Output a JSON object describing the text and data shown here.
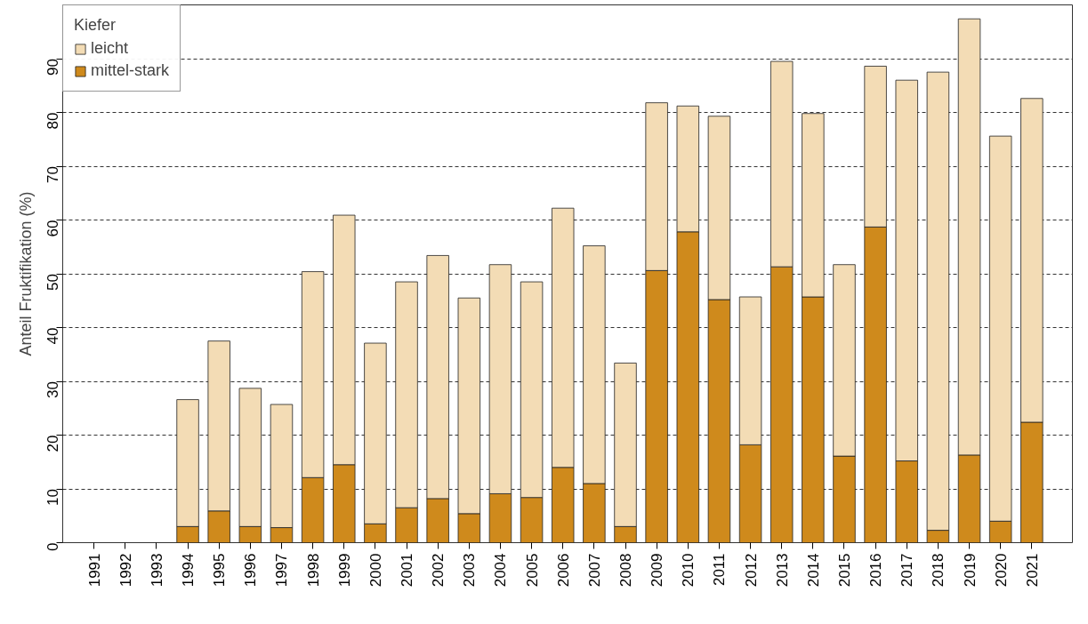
{
  "chart_data": {
    "type": "bar",
    "stacked": true,
    "ylabel": "Anteil Fruktifikation (%)",
    "legend_title": "Kiefer",
    "legend": "top left",
    "grid": "y",
    "categories": [
      "1991",
      "1992",
      "1993",
      "1994",
      "1995",
      "1996",
      "1997",
      "1998",
      "1999",
      "2000",
      "2001",
      "2002",
      "2003",
      "2004",
      "2005",
      "2006",
      "2007",
      "2008",
      "2009",
      "2010",
      "2011",
      "2012",
      "2013",
      "2014",
      "2015",
      "2016",
      "2017",
      "2018",
      "2019",
      "2020",
      "2021"
    ],
    "series": [
      {
        "name": "mittel-stark",
        "color": "#cf8a1c",
        "values": [
          null,
          null,
          null,
          3.0,
          5.9,
          3.0,
          2.8,
          12.1,
          14.5,
          3.5,
          6.5,
          8.2,
          5.4,
          9.1,
          8.4,
          14.0,
          11.0,
          3.0,
          50.6,
          57.8,
          45.2,
          18.2,
          51.3,
          45.7,
          16.1,
          58.7,
          15.2,
          2.3,
          16.3,
          4.0,
          22.4
        ]
      },
      {
        "name": "leicht",
        "color": "#f3dcb5",
        "values": [
          null,
          null,
          null,
          23.6,
          31.6,
          25.7,
          22.9,
          38.3,
          46.4,
          33.6,
          42.0,
          45.2,
          40.1,
          42.6,
          40.1,
          48.2,
          44.2,
          30.4,
          31.2,
          23.4,
          34.1,
          27.5,
          38.2,
          34.1,
          35.6,
          29.9,
          70.8,
          85.2,
          81.1,
          71.6,
          60.2
        ]
      }
    ],
    "ylim": [
      0,
      100
    ],
    "yticks": [
      0,
      10,
      20,
      30,
      40,
      50,
      60,
      70,
      80,
      90
    ]
  }
}
